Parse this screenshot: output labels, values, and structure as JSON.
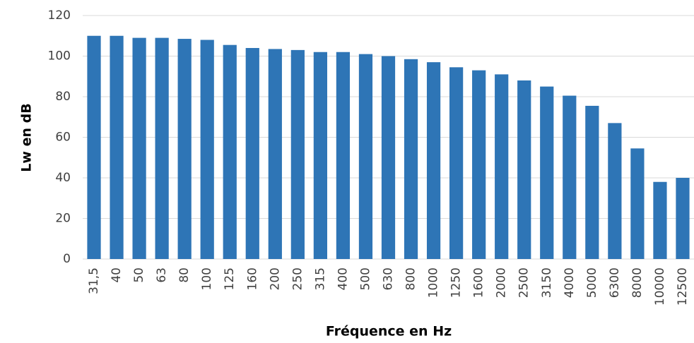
{
  "chart_data": {
    "type": "bar",
    "x_label": "Fréquence en Hz",
    "y_label": "Lw en dB",
    "categories": [
      "31,5",
      "40",
      "50",
      "63",
      "80",
      "100",
      "125",
      "160",
      "200",
      "250",
      "315",
      "400",
      "500",
      "630",
      "800",
      "1000",
      "1250",
      "1600",
      "2000",
      "2500",
      "3150",
      "4000",
      "5000",
      "6300",
      "8000",
      "10000",
      "12500"
    ],
    "values": [
      110,
      110,
      109,
      109,
      108.5,
      108,
      105.5,
      104,
      103.5,
      103,
      102,
      102,
      101,
      100,
      98.5,
      97,
      94.5,
      93,
      91,
      88,
      85,
      80.5,
      75.5,
      67,
      54.5,
      38,
      40
    ],
    "color": "#2e75b6",
    "ylim": [
      0,
      120
    ],
    "yticks": [
      0,
      20,
      40,
      60,
      80,
      100,
      120
    ],
    "grid": true
  }
}
